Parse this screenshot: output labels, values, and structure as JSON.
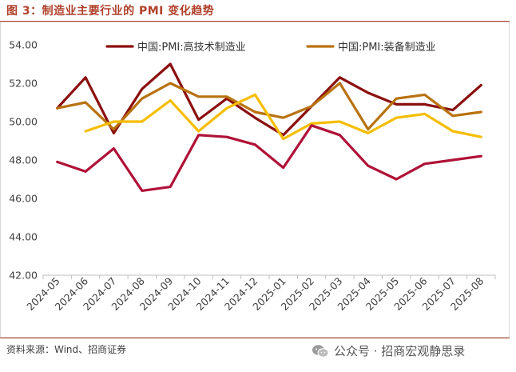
{
  "figure_title": "图 3：制造业主要行业的 PMI 变化趋势",
  "source_note": "资料来源：Wind、招商证券",
  "watermark": {
    "icon": "wechat-icon",
    "text": "公众号 · 招商宏观静思录"
  },
  "chart_data": {
    "type": "line",
    "title": "图 3：制造业主要行业的 PMI 变化趋势",
    "xlabel": "",
    "ylabel": "",
    "ylim": [
      42,
      54
    ],
    "yticks": [
      "42.00",
      "44.00",
      "46.00",
      "48.00",
      "50.00",
      "52.00",
      "54.00"
    ],
    "grid": false,
    "legend_position": "top",
    "categories": [
      "2024-05",
      "2024-06",
      "2024-07",
      "2024-08",
      "2024-09",
      "2024-10",
      "2024-11",
      "2024-12",
      "2025-01",
      "2025-02",
      "2025-03",
      "2025-04",
      "2025-05",
      "2025-06",
      "2025-07",
      "2025-08"
    ],
    "series": [
      {
        "name": "中国:PMI:高技术制造业",
        "color": "#8b0f0f",
        "in_legend": true,
        "values": [
          50.7,
          52.3,
          49.4,
          51.7,
          53.0,
          50.1,
          51.2,
          50.2,
          49.3,
          50.8,
          52.3,
          51.5,
          50.9,
          50.9,
          50.6,
          51.9
        ]
      },
      {
        "name": "中国:PMI:装备制造业",
        "color": "#b8720f",
        "in_legend": true,
        "values": [
          50.7,
          51.0,
          49.6,
          51.2,
          52.0,
          51.3,
          51.3,
          50.5,
          50.2,
          50.8,
          52.0,
          49.6,
          51.2,
          51.4,
          50.3,
          50.5
        ]
      },
      {
        "name": "",
        "color": "#f5bd00",
        "in_legend": false,
        "values": [
          null,
          49.5,
          50.0,
          50.0,
          51.1,
          49.5,
          50.7,
          51.4,
          49.1,
          49.9,
          50.0,
          49.4,
          50.2,
          50.4,
          49.5,
          49.2
        ]
      },
      {
        "name": "",
        "color": "#b01238",
        "in_legend": false,
        "values": [
          47.9,
          47.4,
          48.6,
          46.4,
          46.6,
          49.3,
          49.2,
          48.8,
          47.6,
          49.8,
          49.3,
          47.7,
          47.0,
          47.8,
          48.0,
          48.2
        ]
      }
    ]
  }
}
